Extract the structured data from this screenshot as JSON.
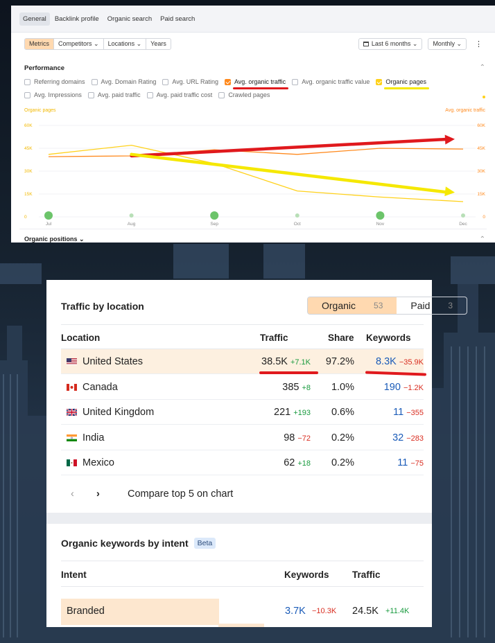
{
  "top_panel": {
    "tabs": [
      "General",
      "Backlink profile",
      "Organic search",
      "Paid search"
    ],
    "metric_tabs": [
      "Metrics",
      "Competitors ⌄",
      "Locations ⌄",
      "Years"
    ],
    "date_range": "Last 6 months ⌄",
    "interval": "Monthly ⌄",
    "more": "⋮",
    "section_title": "Performance",
    "checkboxes_row1": [
      {
        "label": "Referring domains",
        "checked": false
      },
      {
        "label": "Avg. Domain Rating",
        "checked": false
      },
      {
        "label": "Avg. URL Rating",
        "checked": false
      },
      {
        "label": "Avg. organic traffic",
        "checked": true,
        "color": "#ff8a1e"
      },
      {
        "label": "Avg. organic traffic value",
        "checked": false
      },
      {
        "label": "Organic pages",
        "checked": true,
        "color": "#ffd11a"
      }
    ],
    "checkboxes_row2": [
      {
        "label": "Avg. Impressions",
        "checked": false
      },
      {
        "label": "Avg. paid traffic",
        "checked": false
      },
      {
        "label": "Avg. paid traffic cost",
        "checked": false
      },
      {
        "label": "Crawled pages",
        "checked": false
      }
    ],
    "left_axis_title": "Organic pages",
    "right_axis_title": "Avg. organic traffic",
    "positions_label": "Organic positions ⌄"
  },
  "chart_data": {
    "type": "line",
    "x": [
      "Jul",
      "Aug",
      "Sep",
      "Oct",
      "Nov",
      "Dec"
    ],
    "y_ticks_left": [
      "60K",
      "45K",
      "30K",
      "15K",
      "0"
    ],
    "y_ticks_right": [
      "60K",
      "45K",
      "30K",
      "15K",
      "0"
    ],
    "ylim": [
      0,
      60000
    ],
    "series": [
      {
        "name": "Avg. organic traffic",
        "color": "#ff8a1e",
        "axis": "right",
        "values": [
          39500,
          40000,
          44000,
          41000,
          45000,
          44500
        ]
      },
      {
        "name": "Organic pages",
        "color": "#ffd11a",
        "axis": "left",
        "values": [
          41000,
          47000,
          35000,
          17000,
          13000,
          10000
        ]
      }
    ],
    "annotations": [
      {
        "kind": "arrow",
        "color": "#e0191d",
        "from": [
          "Aug",
          40000
        ],
        "to": [
          "Dec",
          51000
        ]
      },
      {
        "kind": "arrow",
        "color": "#f5e800",
        "from": [
          "Aug",
          41000
        ],
        "to": [
          "Dec",
          16000
        ]
      }
    ],
    "event_markers": [
      {
        "month": "Jul",
        "size": "large"
      },
      {
        "month": "Aug",
        "size": "small"
      },
      {
        "month": "Sep",
        "size": "large"
      },
      {
        "month": "Oct",
        "size": "small"
      },
      {
        "month": "Nov",
        "size": "large"
      },
      {
        "month": "Dec",
        "size": "small"
      }
    ]
  },
  "location_card": {
    "title": "Traffic by location",
    "toggle": {
      "organic": "Organic",
      "organic_count": "53",
      "paid": "Paid",
      "paid_count": "3"
    },
    "headers": {
      "location": "Location",
      "traffic": "Traffic",
      "share": "Share",
      "keywords": "Keywords"
    },
    "rows": [
      {
        "flag": "us",
        "country": "United States",
        "traffic": "38.5K",
        "traffic_delta": "+7.1K",
        "traffic_dir": "up",
        "share": "97.2%",
        "keywords": "8.3K",
        "kw_delta": "−35.9K",
        "kw_dir": "down"
      },
      {
        "flag": "ca",
        "country": "Canada",
        "traffic": "385",
        "traffic_delta": "+8",
        "traffic_dir": "up",
        "share": "1.0%",
        "keywords": "190",
        "kw_delta": "−1.2K",
        "kw_dir": "down"
      },
      {
        "flag": "gb",
        "country": "United Kingdom",
        "traffic": "221",
        "traffic_delta": "+193",
        "traffic_dir": "up",
        "share": "0.6%",
        "keywords": "11",
        "kw_delta": "−355",
        "kw_dir": "down"
      },
      {
        "flag": "in",
        "country": "India",
        "traffic": "98",
        "traffic_delta": "−72",
        "traffic_dir": "down",
        "share": "0.2%",
        "keywords": "32",
        "kw_delta": "−283",
        "kw_dir": "down"
      },
      {
        "flag": "mx",
        "country": "Mexico",
        "traffic": "62",
        "traffic_delta": "+18",
        "traffic_dir": "up",
        "share": "0.2%",
        "keywords": "11",
        "kw_delta": "−75",
        "kw_dir": "down"
      }
    ],
    "pager": {
      "prev": "‹",
      "next": "›",
      "compare": "Compare top 5 on chart"
    }
  },
  "intent_card": {
    "title": "Organic keywords by intent",
    "badge": "Beta",
    "headers": {
      "intent": "Intent",
      "keywords": "Keywords",
      "traffic": "Traffic"
    },
    "row": {
      "intent": "Branded",
      "keywords": "3.7K",
      "kw_delta": "−10.3K",
      "traffic": "24.5K",
      "traffic_delta": "+11.4K"
    }
  }
}
